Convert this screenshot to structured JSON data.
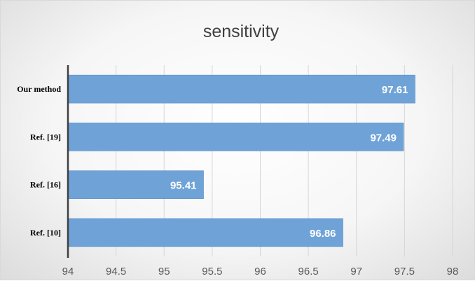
{
  "chart_data": {
    "type": "bar",
    "orientation": "horizontal",
    "title": "sensitivity",
    "xlabel": "",
    "ylabel": "",
    "categories": [
      "Our method",
      "Ref. [19]",
      "Ref. [16]",
      "Ref. [10]"
    ],
    "values": [
      97.61,
      97.49,
      95.41,
      96.86
    ],
    "value_labels": [
      "97.61",
      "97.49",
      "95.41",
      "96.86"
    ],
    "xlim": [
      94,
      98
    ],
    "x_ticks": [
      "94",
      "94.5",
      "95",
      "95.5",
      "96",
      "96.5",
      "97",
      "97.5",
      "98"
    ],
    "grid": true,
    "legend": "none",
    "colors": {
      "bar": "#6fa3d8",
      "bar_edge": "#5b8fc6",
      "grid": "#d6d6d6",
      "axis": "#404040",
      "title": "#404040",
      "tick": "#595959",
      "value_label": "#ffffff",
      "category_label": "#000000"
    }
  }
}
